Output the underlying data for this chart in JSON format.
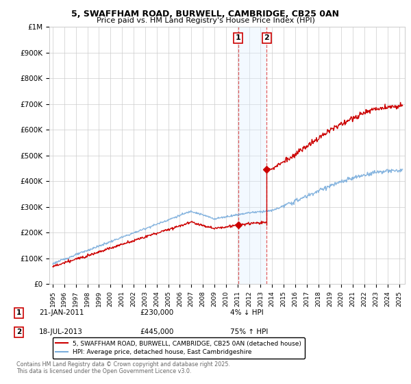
{
  "title_line1": "5, SWAFFHAM ROAD, BURWELL, CAMBRIDGE, CB25 0AN",
  "title_line2": "Price paid vs. HM Land Registry's House Price Index (HPI)",
  "ylim": [
    0,
    1000000
  ],
  "xlim_start": 1994.7,
  "xlim_end": 2025.5,
  "sale1_date": 2011.05,
  "sale1_price": 230000,
  "sale2_date": 2013.54,
  "sale2_price": 445000,
  "legend_line1": "5, SWAFFHAM ROAD, BURWELL, CAMBRIDGE, CB25 0AN (detached house)",
  "legend_line2": "HPI: Average price, detached house, East Cambridgeshire",
  "footer": "Contains HM Land Registry data © Crown copyright and database right 2025.\nThis data is licensed under the Open Government Licence v3.0.",
  "red_color": "#cc0000",
  "blue_color": "#7aaddc",
  "grid_color": "#cccccc",
  "background_color": "#ffffff",
  "shade_color": "#ddeeff",
  "sale1_text_date": "21-JAN-2011",
  "sale1_text_price": "£230,000",
  "sale1_text_hpi": "4% ↓ HPI",
  "sale2_text_date": "18-JUL-2013",
  "sale2_text_price": "£445,000",
  "sale2_text_hpi": "75% ↑ HPI",
  "yticks": [
    0,
    100000,
    200000,
    300000,
    400000,
    500000,
    600000,
    700000,
    800000,
    900000,
    1000000
  ],
  "yticklabels": [
    "£0",
    "£100K",
    "£200K",
    "£300K",
    "£400K",
    "£500K",
    "£600K",
    "£700K",
    "£800K",
    "£900K",
    "£1M"
  ]
}
